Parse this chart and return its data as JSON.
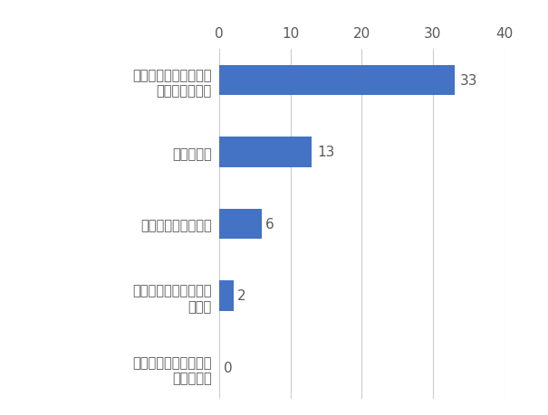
{
  "categories": [
    "奈良県の宿泊施設がと\nれなかった",
    "奈良で過ごすのは半日\nで十分",
    "交通アクセスの問題",
    "行程の都合",
    "他府県の宿泊施設の方\nが魅力的だった"
  ],
  "values": [
    0,
    2,
    6,
    13,
    33
  ],
  "bar_color": "#4472c4",
  "value_labels": [
    "0",
    "2",
    "6",
    "13",
    "33"
  ],
  "xlim": [
    0,
    40
  ],
  "xticks": [
    0,
    10,
    20,
    30,
    40
  ],
  "background_color": "#ffffff",
  "bar_height": 0.42,
  "grid_color": "#cccccc",
  "text_color": "#595959",
  "label_fontsize": 10.5,
  "tick_fontsize": 11.0,
  "value_fontsize": 11.0,
  "value_offsets": [
    0.6,
    0.5,
    0.5,
    0.8,
    0.8
  ]
}
